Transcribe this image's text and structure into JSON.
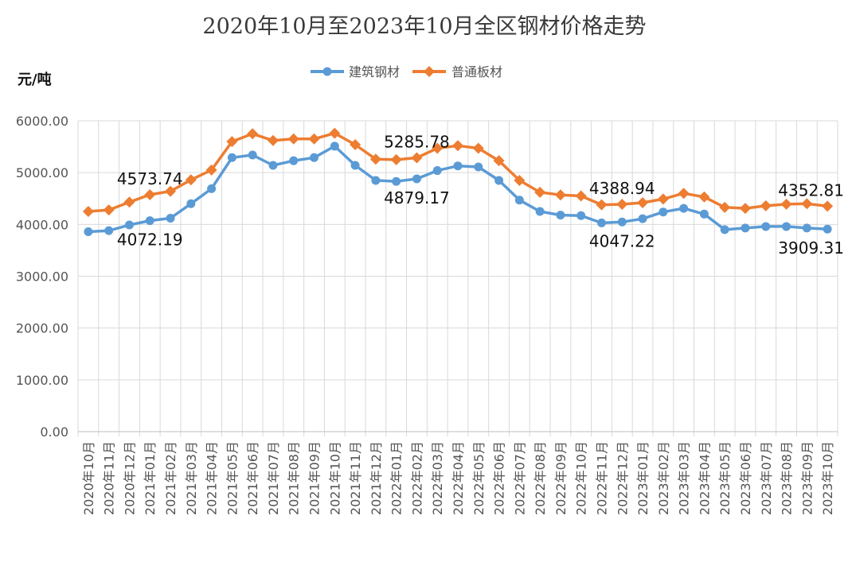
{
  "chart_data": {
    "type": "line",
    "title": "2020年10月至2023年10月全区钢材价格走势",
    "ylabel": "元/吨",
    "xlabel": "",
    "ylim": [
      0,
      6000
    ],
    "yticks": [
      "0.00",
      "1000.00",
      "2000.00",
      "3000.00",
      "4000.00",
      "5000.00",
      "6000.00"
    ],
    "grid": true,
    "legend_position": "top-center",
    "categories": [
      "2020年10月",
      "2020年11月",
      "2020年12月",
      "2021年01月",
      "2021年02月",
      "2021年03月",
      "2021年04月",
      "2021年05月",
      "2021年06月",
      "2021年07月",
      "2021年08月",
      "2021年09月",
      "2021年10月",
      "2021年11月",
      "2021年12月",
      "2022年01月",
      "2022年02月",
      "2022年03月",
      "2022年04月",
      "2022年05月",
      "2022年06月",
      "2022年07月",
      "2022年08月",
      "2022年09月",
      "2022年10月",
      "2022年11月",
      "2022年12月",
      "2023年01月",
      "2023年02月",
      "2023年03月",
      "2023年04月",
      "2023年05月",
      "2023年06月",
      "2023年07月",
      "2023年08月",
      "2023年09月",
      "2023年10月"
    ],
    "series": [
      {
        "name": "建筑钢材",
        "color": "#5b9bd5",
        "marker": "circle",
        "values": [
          3860,
          3880,
          3990,
          4072.19,
          4120,
          4400,
          4690,
          5290,
          5340,
          5140,
          5230,
          5290,
          5510,
          5140,
          4850,
          4830,
          4879.17,
          5040,
          5130,
          5110,
          4850,
          4470,
          4250,
          4180,
          4170,
          4030,
          4047.22,
          4110,
          4240,
          4310,
          4200,
          3900,
          3930,
          3960,
          3960,
          3930,
          3909.31
        ]
      },
      {
        "name": "普通板材",
        "color": "#ed7d31",
        "marker": "diamond",
        "values": [
          4250,
          4280,
          4430,
          4573.74,
          4640,
          4860,
          5050,
          5600,
          5750,
          5620,
          5650,
          5650,
          5760,
          5540,
          5260,
          5250,
          5285.78,
          5470,
          5520,
          5470,
          5230,
          4850,
          4620,
          4570,
          4550,
          4380,
          4388.94,
          4420,
          4490,
          4600,
          4530,
          4330,
          4310,
          4360,
          4390,
          4400,
          4352.81
        ]
      }
    ],
    "annotations": [
      {
        "series": 1,
        "index": 3,
        "text": "4573.74",
        "pos": "above"
      },
      {
        "series": 0,
        "index": 3,
        "text": "4072.19",
        "pos": "below"
      },
      {
        "series": 1,
        "index": 16,
        "text": "5285.78",
        "pos": "above"
      },
      {
        "series": 0,
        "index": 16,
        "text": "4879.17",
        "pos": "below"
      },
      {
        "series": 1,
        "index": 26,
        "text": "4388.94",
        "pos": "above"
      },
      {
        "series": 0,
        "index": 26,
        "text": "4047.22",
        "pos": "below"
      },
      {
        "series": 1,
        "index": 36,
        "text": "4352.81",
        "pos": "above"
      },
      {
        "series": 0,
        "index": 36,
        "text": "3909.31",
        "pos": "below"
      }
    ]
  }
}
